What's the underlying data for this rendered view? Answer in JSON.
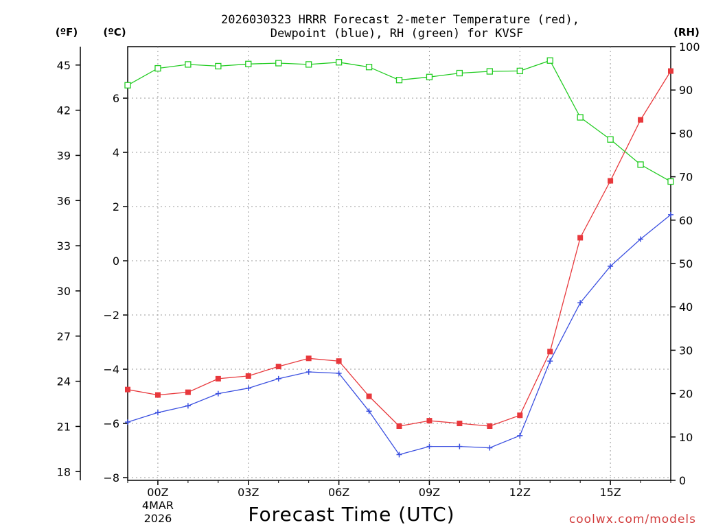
{
  "chart_data": {
    "type": "line",
    "title_line1": "2026030323 HRRR Forecast 2-meter Temperature (red),",
    "title_line2": "Dewpoint (blue), RH (green) for KVSF",
    "xlabel": "Forecast Time (UTC)",
    "credit": "coolwx.com/models",
    "units": {
      "fahrenheit": "(ºF)",
      "celsius": "(ºC)",
      "rh": "(RH)"
    },
    "x_hours": [
      -1,
      0,
      1,
      2,
      3,
      4,
      5,
      6,
      7,
      8,
      9,
      10,
      11,
      12,
      13,
      14,
      15,
      16,
      17
    ],
    "x_range": [
      -1,
      17
    ],
    "x_ticks": [
      {
        "hour": 0,
        "label": "00Z",
        "sub1": "4MAR",
        "sub2": "2026"
      },
      {
        "hour": 3,
        "label": "03Z"
      },
      {
        "hour": 6,
        "label": "06Z"
      },
      {
        "hour": 9,
        "label": "09Z"
      },
      {
        "hour": 12,
        "label": "12Z"
      },
      {
        "hour": 15,
        "label": "15Z"
      }
    ],
    "celsius_range": [
      -8.1,
      7.9
    ],
    "celsius_ticks": [
      "6",
      "4",
      "2",
      "0",
      "−2",
      "−4",
      "−6",
      "−8"
    ],
    "celsius_tick_values": [
      6,
      4,
      2,
      0,
      -2,
      -4,
      -6,
      -8
    ],
    "fahrenheit_ticks": [
      "45",
      "42",
      "39",
      "36",
      "33",
      "30",
      "27",
      "24",
      "21",
      "18"
    ],
    "fahrenheit_tick_values": [
      45,
      42,
      39,
      36,
      33,
      30,
      27,
      24,
      21,
      18
    ],
    "rh_range": [
      0,
      100
    ],
    "rh_ticks": [
      "100",
      "90",
      "80",
      "70",
      "60",
      "50",
      "40",
      "30",
      "20",
      "10",
      "0"
    ],
    "rh_tick_values": [
      100,
      90,
      80,
      70,
      60,
      50,
      40,
      30,
      20,
      10,
      0
    ],
    "series": [
      {
        "name": "Temperature",
        "axis": "celsius",
        "color": "#e8383c",
        "marker": "filled-square",
        "values": [
          -4.75,
          -4.95,
          -4.85,
          -4.35,
          -4.25,
          -3.9,
          -3.6,
          -3.7,
          -5.0,
          -6.1,
          -5.9,
          -6.0,
          -6.1,
          -5.7,
          -3.35,
          0.85,
          2.95,
          5.2,
          7.0
        ]
      },
      {
        "name": "Dewpoint",
        "axis": "celsius",
        "color": "#3a4fe0",
        "marker": "plus",
        "values": [
          -5.95,
          -5.6,
          -5.35,
          -4.9,
          -4.7,
          -4.35,
          -4.1,
          -4.15,
          -5.55,
          -7.15,
          -6.85,
          -6.85,
          -6.9,
          -6.45,
          -3.7,
          -1.55,
          -0.2,
          0.8,
          1.7
        ]
      },
      {
        "name": "RH",
        "axis": "rh",
        "color": "#22cc22",
        "marker": "open-square",
        "values": [
          91.1,
          95.0,
          95.9,
          95.5,
          96.0,
          96.2,
          95.9,
          96.4,
          95.3,
          92.3,
          93.0,
          93.9,
          94.3,
          94.4,
          96.8,
          83.7,
          78.6,
          72.8,
          68.9
        ]
      }
    ]
  }
}
